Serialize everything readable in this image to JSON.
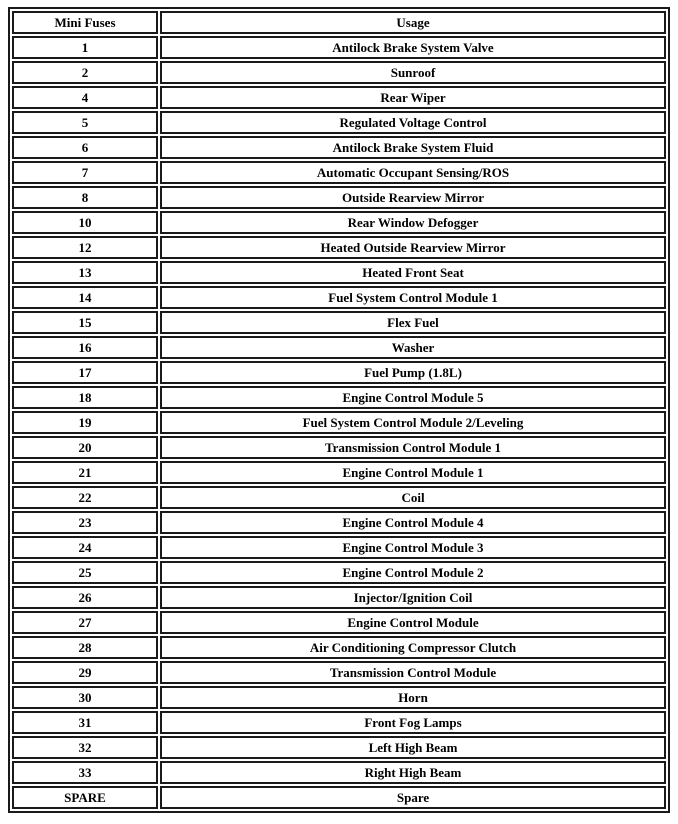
{
  "table": {
    "headers": [
      "Mini Fuses",
      "Usage"
    ],
    "rows": [
      [
        "1",
        "Antilock Brake System Valve"
      ],
      [
        "2",
        "Sunroof"
      ],
      [
        "4",
        "Rear Wiper"
      ],
      [
        "5",
        "Regulated Voltage Control"
      ],
      [
        "6",
        "Antilock Brake System Fluid"
      ],
      [
        "7",
        "Automatic Occupant Sensing/ROS"
      ],
      [
        "8",
        "Outside Rearview Mirror"
      ],
      [
        "10",
        "Rear Window Defogger"
      ],
      [
        "12",
        "Heated Outside Rearview Mirror"
      ],
      [
        "13",
        "Heated Front Seat"
      ],
      [
        "14",
        "Fuel System Control Module 1"
      ],
      [
        "15",
        "Flex Fuel"
      ],
      [
        "16",
        "Washer"
      ],
      [
        "17",
        "Fuel Pump (1.8L)"
      ],
      [
        "18",
        "Engine Control Module 5"
      ],
      [
        "19",
        "Fuel System Control Module 2/Leveling"
      ],
      [
        "20",
        "Transmission Control Module 1"
      ],
      [
        "21",
        "Engine Control Module 1"
      ],
      [
        "22",
        "Coil"
      ],
      [
        "23",
        "Engine Control Module 4"
      ],
      [
        "24",
        "Engine Control Module 3"
      ],
      [
        "25",
        "Engine Control Module 2"
      ],
      [
        "26",
        "Injector/Ignition Coil"
      ],
      [
        "27",
        "Engine Control Module"
      ],
      [
        "28",
        "Air Conditioning Compressor Clutch"
      ],
      [
        "29",
        "Transmission Control Module"
      ],
      [
        "30",
        "Horn"
      ],
      [
        "31",
        "Front Fog Lamps"
      ],
      [
        "32",
        "Left High Beam"
      ],
      [
        "33",
        "Right High Beam"
      ],
      [
        "SPARE",
        "Spare"
      ]
    ]
  }
}
